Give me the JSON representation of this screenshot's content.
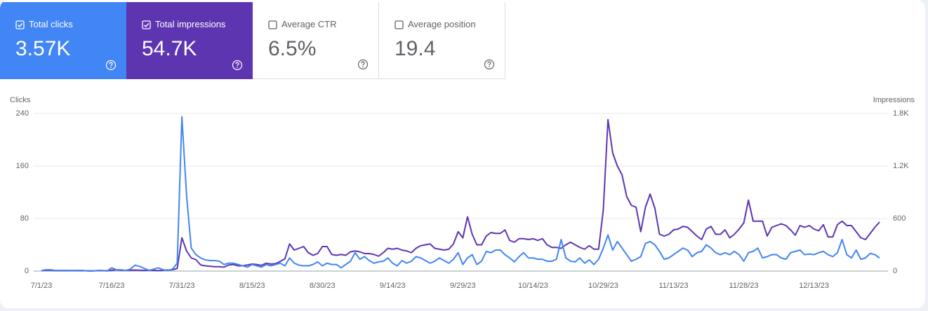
{
  "metrics": [
    {
      "label": "Total clicks",
      "value": "3.57K",
      "selected": true,
      "color": "#4285f4"
    },
    {
      "label": "Total impressions",
      "value": "54.7K",
      "selected": true,
      "color": "#5e35b1"
    },
    {
      "label": "Average CTR",
      "value": "6.5%",
      "selected": false,
      "color": "#00897b"
    },
    {
      "label": "Average position",
      "value": "19.4",
      "selected": false,
      "color": "#e8710a"
    }
  ],
  "chart_data": {
    "type": "line",
    "ylabel": "Clicks",
    "y2label": "Impressions",
    "x": [
      "7/1/23",
      "7/2/23",
      "7/3/23",
      "7/4/23",
      "7/5/23",
      "7/6/23",
      "7/7/23",
      "7/8/23",
      "7/9/23",
      "7/10/23",
      "7/11/23",
      "7/12/23",
      "7/13/23",
      "7/14/23",
      "7/15/23",
      "7/16/23",
      "7/17/23",
      "7/18/23",
      "7/19/23",
      "7/20/23",
      "7/21/23",
      "7/22/23",
      "7/23/23",
      "7/24/23",
      "7/25/23",
      "7/26/23",
      "7/27/23",
      "7/28/23",
      "7/29/23",
      "7/30/23",
      "7/31/23",
      "8/1/23",
      "8/2/23",
      "8/3/23",
      "8/4/23",
      "8/5/23",
      "8/6/23",
      "8/7/23",
      "8/8/23",
      "8/9/23",
      "8/10/23",
      "8/11/23",
      "8/12/23",
      "8/13/23",
      "8/14/23",
      "8/15/23",
      "8/16/23",
      "8/17/23",
      "8/18/23",
      "8/19/23",
      "8/20/23",
      "8/21/23",
      "8/22/23",
      "8/23/23",
      "8/24/23",
      "8/25/23",
      "8/26/23",
      "8/27/23",
      "8/28/23",
      "8/29/23",
      "8/30/23",
      "8/31/23",
      "9/1/23",
      "9/2/23",
      "9/3/23",
      "9/4/23",
      "9/5/23",
      "9/6/23",
      "9/7/23",
      "9/8/23",
      "9/9/23",
      "9/10/23",
      "9/11/23",
      "9/12/23",
      "9/13/23",
      "9/14/23",
      "9/15/23",
      "9/16/23",
      "9/17/23",
      "9/18/23",
      "9/19/23",
      "9/20/23",
      "9/21/23",
      "9/22/23",
      "9/23/23",
      "9/24/23",
      "9/25/23",
      "9/26/23",
      "9/27/23",
      "9/28/23",
      "9/29/23",
      "9/30/23",
      "10/1/23",
      "10/2/23",
      "10/3/23",
      "10/4/23",
      "10/5/23",
      "10/6/23",
      "10/7/23",
      "10/8/23",
      "10/9/23",
      "10/10/23",
      "10/11/23",
      "10/12/23",
      "10/13/23",
      "10/14/23",
      "10/15/23",
      "10/16/23",
      "10/17/23",
      "10/18/23",
      "10/19/23",
      "10/20/23",
      "10/21/23",
      "10/22/23",
      "10/23/23",
      "10/24/23",
      "10/25/23",
      "10/26/23",
      "10/27/23",
      "10/28/23",
      "10/29/23",
      "10/30/23",
      "10/31/23",
      "11/1/23",
      "11/2/23",
      "11/3/23",
      "11/4/23",
      "11/5/23",
      "11/6/23",
      "11/7/23",
      "11/8/23",
      "11/9/23",
      "11/10/23",
      "11/11/23",
      "11/12/23",
      "11/13/23",
      "11/14/23",
      "11/15/23",
      "11/16/23",
      "11/17/23",
      "11/18/23",
      "11/19/23",
      "11/20/23",
      "11/21/23",
      "11/22/23",
      "11/23/23",
      "11/24/23",
      "11/25/23",
      "11/26/23",
      "11/27/23",
      "11/28/23",
      "11/29/23",
      "11/30/23",
      "12/1/23",
      "12/2/23",
      "12/3/23",
      "12/4/23",
      "12/5/23",
      "12/6/23",
      "12/7/23",
      "12/8/23",
      "12/9/23",
      "12/10/23",
      "12/11/23",
      "12/12/23",
      "12/13/23",
      "12/14/23",
      "12/15/23",
      "12/16/23",
      "12/17/23",
      "12/18/23",
      "12/19/23",
      "12/20/23",
      "12/21/23",
      "12/22/23",
      "12/23/23",
      "12/24/23",
      "12/25/23",
      "12/26/23",
      "12/27/23"
    ],
    "xticks": [
      "7/1/23",
      "7/16/23",
      "7/31/23",
      "8/15/23",
      "8/30/23",
      "9/14/23",
      "9/29/23",
      "10/14/23",
      "10/29/23",
      "11/13/23",
      "11/28/23",
      "12/13/23"
    ],
    "ylim": [
      0,
      240
    ],
    "yticks": [
      0,
      80,
      160,
      240
    ],
    "y2lim": [
      0,
      1800
    ],
    "y2ticks": [
      0,
      600,
      {
        "value": 1200,
        "label": "1.2K"
      },
      {
        "value": 1800,
        "label": "1.8K"
      }
    ],
    "grid": true,
    "series": [
      {
        "color": "#5e35b1",
        "axis": "y2",
        "values": [
          5,
          10,
          8,
          5,
          5,
          4,
          5,
          5,
          4,
          4,
          3,
          3,
          5,
          5,
          4,
          10,
          15,
          10,
          8,
          10,
          12,
          10,
          8,
          10,
          8,
          5,
          10,
          12,
          15,
          30,
          380,
          230,
          150,
          130,
          70,
          60,
          55,
          50,
          50,
          45,
          70,
          75,
          60,
          60,
          70,
          80,
          75,
          65,
          90,
          80,
          85,
          110,
          140,
          310,
          240,
          260,
          280,
          210,
          180,
          200,
          280,
          280,
          190,
          180,
          190,
          180,
          220,
          230,
          220,
          200,
          200,
          190,
          170,
          210,
          260,
          250,
          260,
          240,
          230,
          210,
          260,
          290,
          300,
          310,
          260,
          250,
          240,
          250,
          310,
          450,
          380,
          620,
          420,
          300,
          300,
          400,
          440,
          430,
          430,
          470,
          350,
          330,
          370,
          370,
          360,
          370,
          350,
          370,
          300,
          270,
          270,
          260,
          300,
          330,
          300,
          270,
          250,
          290,
          250,
          250,
          700,
          1730,
          1350,
          1200,
          1100,
          850,
          750,
          730,
          450,
          730,
          880,
          720,
          420,
          400,
          420,
          470,
          480,
          510,
          500,
          450,
          400,
          360,
          480,
          510,
          420,
          420,
          470,
          380,
          420,
          480,
          550,
          810,
          570,
          570,
          570,
          400,
          500,
          520,
          540,
          520,
          470,
          410,
          520,
          500,
          520,
          480,
          460,
          530,
          390,
          390,
          530,
          570,
          520,
          520,
          450,
          380,
          360,
          430,
          500,
          560
        ]
      },
      {
        "color": "#4285f4",
        "axis": "y",
        "values": [
          1,
          2,
          2,
          1,
          1,
          1,
          1,
          1,
          1,
          1,
          0,
          0,
          1,
          1,
          0,
          5,
          2,
          2,
          1,
          3,
          9,
          7,
          4,
          1,
          3,
          5,
          2,
          1,
          3,
          12,
          235,
          115,
          35,
          25,
          20,
          17,
          16,
          16,
          15,
          10,
          12,
          12,
          10,
          8,
          6,
          10,
          8,
          6,
          10,
          8,
          10,
          12,
          8,
          20,
          12,
          9,
          8,
          8,
          10,
          14,
          8,
          12,
          10,
          10,
          5,
          10,
          15,
          28,
          18,
          22,
          16,
          12,
          14,
          15,
          20,
          12,
          8,
          16,
          12,
          15,
          22,
          20,
          16,
          12,
          15,
          20,
          16,
          12,
          18,
          28,
          10,
          20,
          25,
          10,
          15,
          30,
          28,
          32,
          32,
          25,
          20,
          14,
          22,
          28,
          20,
          20,
          18,
          18,
          15,
          15,
          18,
          48,
          20,
          15,
          14,
          20,
          12,
          17,
          10,
          18,
          35,
          55,
          32,
          45,
          35,
          25,
          15,
          18,
          22,
          42,
          45,
          40,
          30,
          18,
          20,
          25,
          30,
          35,
          32,
          22,
          28,
          30,
          40,
          35,
          28,
          25,
          28,
          25,
          30,
          25,
          15,
          28,
          30,
          35,
          20,
          22,
          25,
          25,
          20,
          18,
          28,
          30,
          32,
          25,
          26,
          25,
          28,
          30,
          25,
          22,
          28,
          48,
          25,
          20,
          32,
          18,
          20,
          27,
          25,
          20
        ]
      }
    ]
  }
}
